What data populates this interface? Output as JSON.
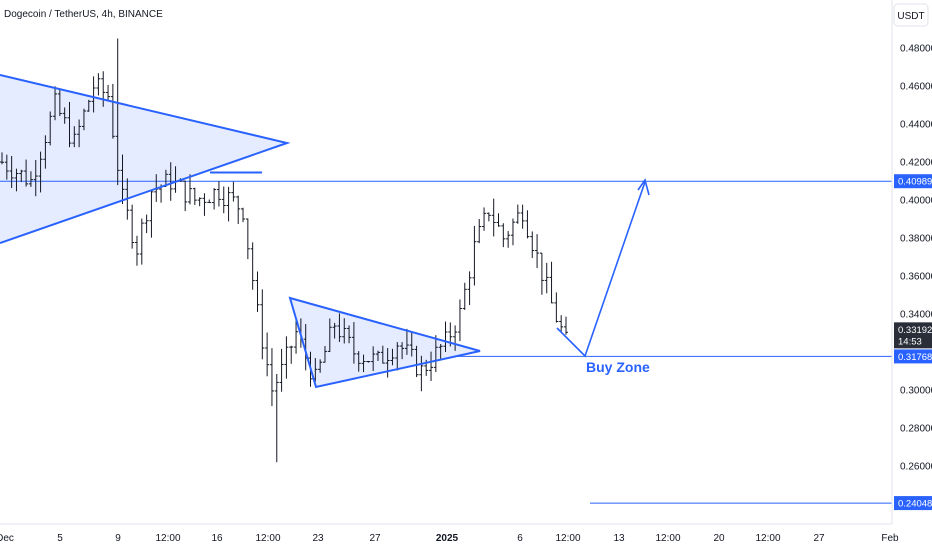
{
  "chart_data": {
    "type": "bar",
    "title": "Dogecoin / TetherUS, 4h, BINANCE",
    "symbol": "Dogecoin / TetherUS",
    "interval": "4h",
    "exchange": "BINANCE",
    "currency": "USDT",
    "ylim": [
      0.232,
      0.5
    ],
    "y_ticks": [
      "0.48000",
      "0.46000",
      "0.44000",
      "0.42000",
      "0.40000",
      "0.38000",
      "0.36000",
      "0.34000",
      "0.30000",
      "0.28000",
      "0.26000"
    ],
    "y_tick_values": [
      0.48,
      0.46,
      0.44,
      0.42,
      0.4,
      0.38,
      0.36,
      0.34,
      0.3,
      0.28,
      0.26
    ],
    "x_ticks": [
      "Dec",
      "5",
      "9",
      "12:00",
      "16",
      "12:00",
      "23",
      "27",
      "2025",
      "6",
      "12:00",
      "13",
      "12:00",
      "20",
      "12:00",
      "27",
      "Feb"
    ],
    "price_labels": [
      {
        "text": "0.40989",
        "value": 0.40989,
        "color": "#2962ff"
      },
      {
        "text": "0.31768",
        "value": 0.31768,
        "color": "#2962ff"
      },
      {
        "text": "0.24048",
        "value": 0.24048,
        "color": "#2962ff"
      }
    ],
    "current_price": {
      "text": "0.33192",
      "countdown": "14:53",
      "value": 0.33192,
      "color": "#2a2e39"
    },
    "annotation": "Buy Zone",
    "series": [
      {
        "anchors": [
          [
            0,
            0.42
          ],
          [
            6,
            0.41
          ],
          [
            11,
            0.45
          ],
          [
            15,
            0.43
          ],
          [
            19,
            0.46
          ],
          [
            22,
            0.455
          ],
          [
            25,
            0.4
          ],
          [
            28,
            0.375
          ],
          [
            31,
            0.405
          ],
          [
            35,
            0.41
          ],
          [
            40,
            0.4
          ],
          [
            45,
            0.405
          ],
          [
            50,
            0.395
          ],
          [
            53,
            0.34
          ],
          [
            56,
            0.3
          ],
          [
            58,
            0.31
          ],
          [
            61,
            0.33
          ],
          [
            65,
            0.305
          ],
          [
            69,
            0.335
          ],
          [
            73,
            0.32
          ],
          [
            78,
            0.315
          ],
          [
            82,
            0.325
          ],
          [
            87,
            0.31
          ],
          [
            92,
            0.325
          ],
          [
            95,
            0.34
          ],
          [
            98,
            0.375
          ],
          [
            101,
            0.395
          ],
          [
            104,
            0.38
          ],
          [
            108,
            0.395
          ],
          [
            111,
            0.37
          ],
          [
            114,
            0.345
          ],
          [
            117,
            0.325
          ]
        ]
      }
    ],
    "colors": {
      "accent": "#2962ff",
      "fill": "#2962ff",
      "bars": "#131722",
      "grid_axis": "#e0e3eb"
    }
  }
}
